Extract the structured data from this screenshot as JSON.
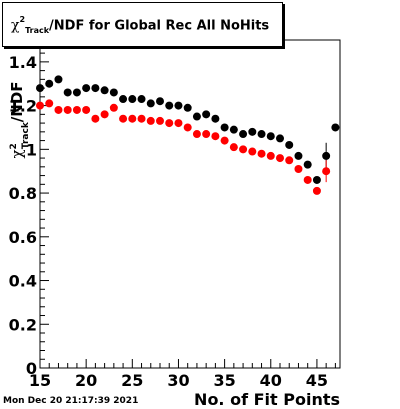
{
  "title": {
    "prefix": "χ",
    "sup": "2",
    "sub": "Track",
    "suffix": "/NDF for Global Rec All NoHits"
  },
  "footer": {
    "timestamp": "Mon Dec 20 21:17:39 2021"
  },
  "chart_data": {
    "type": "scatter",
    "title": "χ²_Track/NDF for Global Rec All NoHits",
    "xlabel": "No. of Fit Points",
    "ylabel": "χ²_Track/NDF",
    "xlim": [
      15,
      47.5
    ],
    "ylim": [
      0,
      1.5
    ],
    "x_ticks": [
      15,
      20,
      25,
      30,
      35,
      40,
      45
    ],
    "y_ticks": [
      0,
      0.2,
      0.4,
      0.6,
      0.8,
      1,
      1.2,
      1.4
    ],
    "y_tick_labels": [
      "0",
      "0.2",
      "0.4",
      "0.6",
      "0.8",
      "1",
      "1.2",
      "1.4"
    ],
    "grid": false,
    "colors": {
      "black_series": "#000000",
      "red_series": "#ff0000"
    },
    "series": [
      {
        "color": "#000000",
        "points": [
          {
            "x": 15,
            "y": 1.28
          },
          {
            "x": 16,
            "y": 1.3
          },
          {
            "x": 17,
            "y": 1.32
          },
          {
            "x": 18,
            "y": 1.26
          },
          {
            "x": 19,
            "y": 1.26
          },
          {
            "x": 20,
            "y": 1.28
          },
          {
            "x": 21,
            "y": 1.28
          },
          {
            "x": 22,
            "y": 1.27
          },
          {
            "x": 23,
            "y": 1.26
          },
          {
            "x": 24,
            "y": 1.23
          },
          {
            "x": 25,
            "y": 1.23
          },
          {
            "x": 26,
            "y": 1.23
          },
          {
            "x": 27,
            "y": 1.21
          },
          {
            "x": 28,
            "y": 1.22
          },
          {
            "x": 29,
            "y": 1.2
          },
          {
            "x": 30,
            "y": 1.2
          },
          {
            "x": 31,
            "y": 1.19
          },
          {
            "x": 32,
            "y": 1.15
          },
          {
            "x": 33,
            "y": 1.16
          },
          {
            "x": 34,
            "y": 1.14
          },
          {
            "x": 35,
            "y": 1.1
          },
          {
            "x": 36,
            "y": 1.09
          },
          {
            "x": 37,
            "y": 1.07
          },
          {
            "x": 38,
            "y": 1.08
          },
          {
            "x": 39,
            "y": 1.07
          },
          {
            "x": 40,
            "y": 1.06
          },
          {
            "x": 41,
            "y": 1.05
          },
          {
            "x": 42,
            "y": 1.02
          },
          {
            "x": 43,
            "y": 0.97
          },
          {
            "x": 44,
            "y": 0.93
          },
          {
            "x": 45,
            "y": 0.86
          },
          {
            "x": 46,
            "y": 0.97,
            "err": 0.06
          },
          {
            "x": 47,
            "y": 1.1
          }
        ]
      },
      {
        "color": "#ff0000",
        "points": [
          {
            "x": 15,
            "y": 1.2
          },
          {
            "x": 16,
            "y": 1.21
          },
          {
            "x": 17,
            "y": 1.18
          },
          {
            "x": 18,
            "y": 1.18
          },
          {
            "x": 19,
            "y": 1.18
          },
          {
            "x": 20,
            "y": 1.18
          },
          {
            "x": 21,
            "y": 1.14
          },
          {
            "x": 22,
            "y": 1.16
          },
          {
            "x": 23,
            "y": 1.19
          },
          {
            "x": 24,
            "y": 1.14
          },
          {
            "x": 25,
            "y": 1.14
          },
          {
            "x": 26,
            "y": 1.14
          },
          {
            "x": 27,
            "y": 1.13
          },
          {
            "x": 28,
            "y": 1.13
          },
          {
            "x": 29,
            "y": 1.12
          },
          {
            "x": 30,
            "y": 1.12
          },
          {
            "x": 31,
            "y": 1.1
          },
          {
            "x": 32,
            "y": 1.07
          },
          {
            "x": 33,
            "y": 1.07
          },
          {
            "x": 34,
            "y": 1.06
          },
          {
            "x": 35,
            "y": 1.04
          },
          {
            "x": 36,
            "y": 1.01
          },
          {
            "x": 37,
            "y": 1.0
          },
          {
            "x": 38,
            "y": 0.99
          },
          {
            "x": 39,
            "y": 0.98
          },
          {
            "x": 40,
            "y": 0.97
          },
          {
            "x": 41,
            "y": 0.96
          },
          {
            "x": 42,
            "y": 0.95
          },
          {
            "x": 43,
            "y": 0.91
          },
          {
            "x": 44,
            "y": 0.86
          },
          {
            "x": 45,
            "y": 0.81
          },
          {
            "x": 46,
            "y": 0.9,
            "err": 0.05
          }
        ]
      }
    ]
  }
}
